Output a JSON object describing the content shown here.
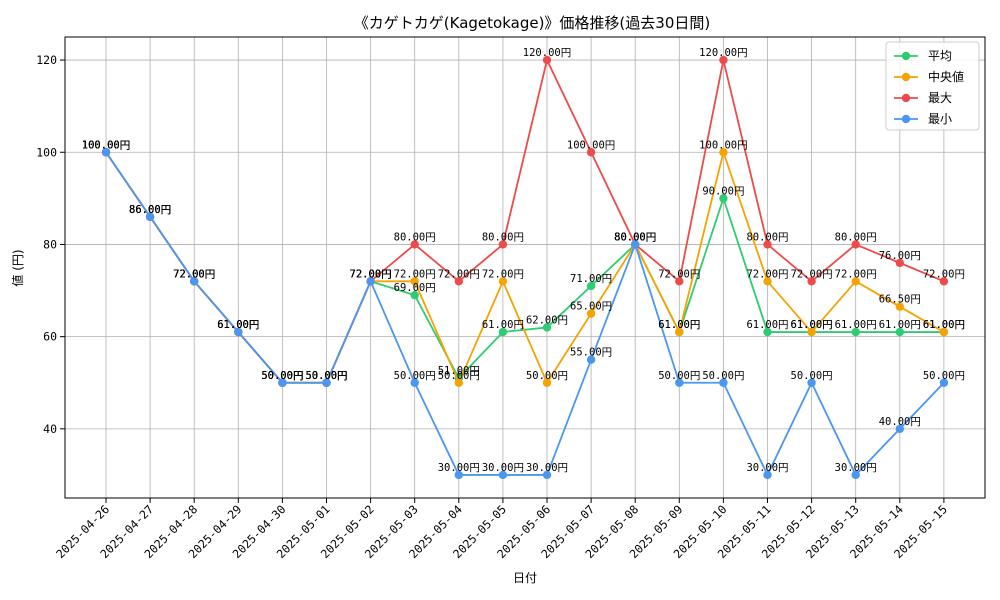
{
  "chart_data": {
    "type": "line",
    "title": "《カゲトカゲ(Kagetokage)》価格推移(過去30日間)",
    "xlabel": "日付",
    "ylabel": "値 (円)",
    "categories": [
      "2025-04-26",
      "2025-04-27",
      "2025-04-28",
      "2025-04-29",
      "2025-04-30",
      "2025-05-01",
      "2025-05-02",
      "2025-05-03",
      "2025-05-04",
      "2025-05-05",
      "2025-05-06",
      "2025-05-07",
      "2025-05-08",
      "2025-05-09",
      "2025-05-10",
      "2025-05-11",
      "2025-05-12",
      "2025-05-13",
      "2025-05-14",
      "2025-05-15"
    ],
    "ylim": [
      25,
      125
    ],
    "yticks": [
      40,
      60,
      80,
      100,
      120
    ],
    "grid": true,
    "legend_position": "top-right",
    "value_suffix": "円",
    "series": [
      {
        "name": "平均",
        "color": "#2ecc71",
        "values": [
          100,
          86,
          72,
          61,
          50,
          50,
          72,
          69,
          51,
          61,
          62,
          71,
          80,
          61,
          90,
          61,
          61,
          61,
          61,
          61
        ]
      },
      {
        "name": "中央値",
        "color": "#f5a300",
        "values": [
          100,
          86,
          72,
          61,
          50,
          50,
          72,
          72,
          50,
          72,
          50,
          65,
          80,
          61,
          100,
          72,
          61,
          72,
          66.5,
          61
        ]
      },
      {
        "name": "最大",
        "color": "#ef4a4a",
        "values": [
          100,
          86,
          72,
          61,
          50,
          50,
          72,
          80,
          72,
          80,
          120,
          100,
          80,
          72,
          120,
          80,
          72,
          80,
          76,
          72
        ]
      },
      {
        "name": "最小",
        "color": "#4a96f0",
        "values": [
          100,
          86,
          72,
          61,
          50,
          50,
          72,
          50,
          30,
          30,
          30,
          55,
          80,
          50,
          50,
          30,
          50,
          30,
          40,
          50
        ]
      }
    ]
  }
}
